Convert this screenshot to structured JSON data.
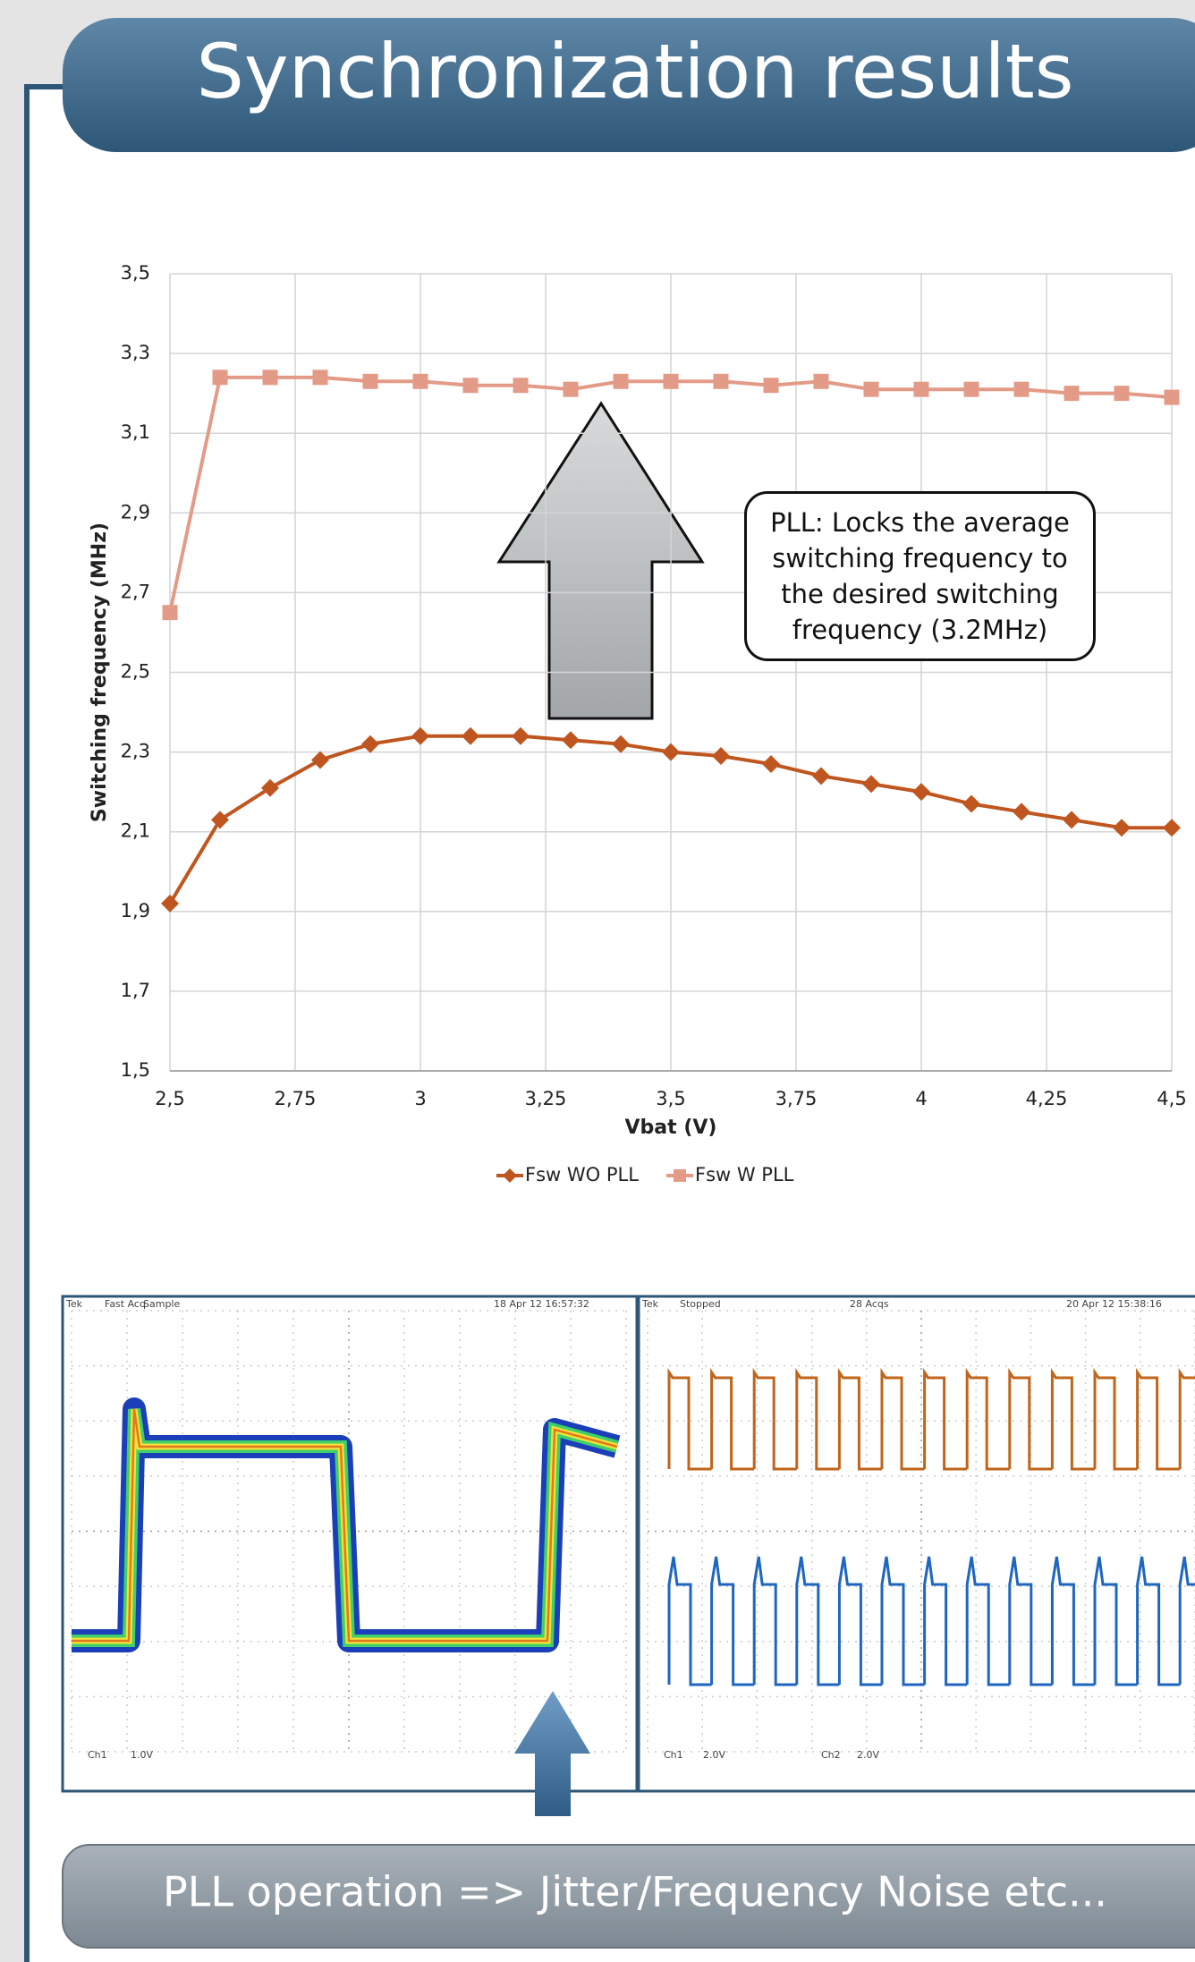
{
  "title": "Synchronization results",
  "chart_data": {
    "type": "line",
    "y_label": "Switching frequency (MHz)",
    "x_label": "Vbat (V)",
    "x": [
      2.5,
      2.6,
      2.7,
      2.8,
      2.9,
      3.0,
      3.1,
      3.2,
      3.3,
      3.4,
      3.5,
      3.6,
      3.7,
      3.8,
      3.9,
      4.0,
      4.1,
      4.2,
      4.3,
      4.4,
      4.5
    ],
    "xlim": [
      2.5,
      4.5
    ],
    "xticks": [
      {
        "value": 2.5,
        "label": "2,5"
      },
      {
        "value": 2.75,
        "label": "2,75"
      },
      {
        "value": 3,
        "label": "3"
      },
      {
        "value": 3.25,
        "label": "3,25"
      },
      {
        "value": 3.5,
        "label": "3,5"
      },
      {
        "value": 3.75,
        "label": "3,75"
      },
      {
        "value": 4,
        "label": "4"
      },
      {
        "value": 4.25,
        "label": "4,25"
      },
      {
        "value": 4.5,
        "label": "4,5"
      }
    ],
    "ylim": [
      1.5,
      3.5
    ],
    "yticks": [
      {
        "value": 1.5,
        "label": "1,5"
      },
      {
        "value": 1.7,
        "label": "1,7"
      },
      {
        "value": 1.9,
        "label": "1,9"
      },
      {
        "value": 2.1,
        "label": "2,1"
      },
      {
        "value": 2.3,
        "label": "2,3"
      },
      {
        "value": 2.5,
        "label": "2,5"
      },
      {
        "value": 2.7,
        "label": "2,7"
      },
      {
        "value": 2.9,
        "label": "2,9"
      },
      {
        "value": 3.1,
        "label": "3,1"
      },
      {
        "value": 3.3,
        "label": "3,3"
      },
      {
        "value": 3.5,
        "label": "3,5"
      }
    ],
    "grid": true,
    "legend": "bottom",
    "series": [
      {
        "name": "Fsw WO PLL",
        "color": "#c0561f",
        "marker": "diamond",
        "values": [
          1.92,
          2.13,
          2.21,
          2.28,
          2.32,
          2.34,
          2.34,
          2.34,
          2.33,
          2.32,
          2.3,
          2.29,
          2.27,
          2.24,
          2.22,
          2.2,
          2.17,
          2.15,
          2.13,
          2.11,
          2.11
        ]
      },
      {
        "name": "Fsw W PLL",
        "color": "#e39b88",
        "marker": "square",
        "values": [
          2.65,
          3.24,
          3.24,
          3.24,
          3.23,
          3.23,
          3.22,
          3.22,
          3.21,
          3.23,
          3.23,
          3.23,
          3.22,
          3.23,
          3.21,
          3.21,
          3.21,
          3.21,
          3.2,
          3.2,
          3.19
        ]
      }
    ],
    "annotation": "PLL: Locks the average switching frequency to the desired switching frequency (3.2MHz)"
  },
  "scope_left": {
    "labels": [
      "Tek",
      "Fast Acq",
      "Sample",
      "18 Apr 12 16:57:32",
      "Ch1",
      "1.0V"
    ]
  },
  "scope_right": {
    "labels": [
      "Tek",
      "Stopped",
      "28 Acqs",
      "20 Apr 12 15:38:16",
      "Ch1",
      "2.0V",
      "Ch2",
      "2.0V"
    ]
  },
  "footer": "PLL operation => Jitter/Frequency Noise etc..."
}
